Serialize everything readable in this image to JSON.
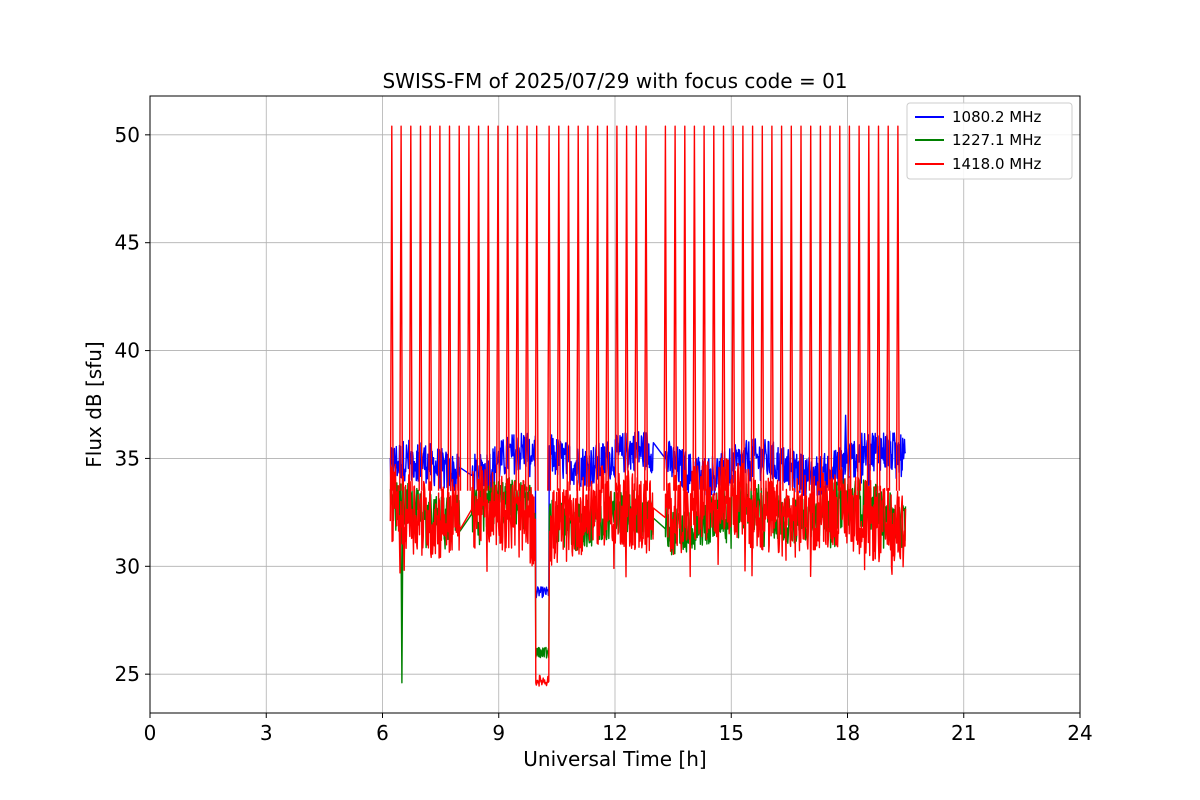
{
  "chart_data": {
    "type": "line",
    "title": "SWISS-FM of 2025/07/29 with focus code = 01",
    "xlabel": "Universal Time [h]",
    "ylabel": "Flux dB [sfu]",
    "xlim": [
      0,
      24
    ],
    "ylim": [
      23.2,
      51.8
    ],
    "xticks": [
      0,
      3,
      6,
      9,
      12,
      15,
      18,
      21,
      24
    ],
    "yticks": [
      25,
      30,
      35,
      40,
      45,
      50
    ],
    "grid": true,
    "legend_position": "top-right",
    "data_window": [
      6.2,
      19.5
    ],
    "gaps": [
      [
        8.0,
        8.3
      ],
      [
        10.05,
        10.25
      ],
      [
        13.0,
        13.3
      ]
    ],
    "series": [
      {
        "name": "1080.2 MHz",
        "color": "#0000ff",
        "base": 34.8,
        "band": [
          33.7,
          36.3
        ],
        "features": [
          {
            "x": [
              9.95,
              10.3
            ],
            "y": 28.8,
            "note_values": [
              28.5,
              29.2
            ]
          },
          {
            "x": 17.95,
            "y": 37.0
          }
        ]
      },
      {
        "name": "1227.1 MHz",
        "color": "#008000",
        "base": 32.3,
        "band": [
          30.8,
          33.8
        ],
        "features": [
          {
            "x": 6.5,
            "y": 24.6
          },
          {
            "x": [
              9.95,
              10.3
            ],
            "y": 26.0
          }
        ]
      },
      {
        "name": "1418.0 MHz",
        "color": "#ff0000",
        "base": 32.5,
        "band": [
          29.5,
          34.5
        ],
        "spike_peak": 50.4,
        "spike_times": [
          6.24,
          6.48,
          6.73,
          6.98,
          7.23,
          7.48,
          7.73,
          7.98,
          8.23,
          8.48,
          8.73,
          8.98,
          9.23,
          9.48,
          9.73,
          9.98,
          10.3,
          10.55,
          10.8,
          11.05,
          11.3,
          11.55,
          11.8,
          12.05,
          12.3,
          12.55,
          12.8,
          13.3,
          13.55,
          13.8,
          14.05,
          14.3,
          14.55,
          14.8,
          15.05,
          15.3,
          15.55,
          15.8,
          16.05,
          16.3,
          16.55,
          16.8,
          17.05,
          17.3,
          17.55,
          17.8,
          18.05,
          18.3,
          18.55,
          18.8,
          19.05,
          19.3
        ],
        "features": [
          {
            "x": [
              9.95,
              10.3
            ],
            "y": 24.7
          }
        ]
      }
    ]
  }
}
